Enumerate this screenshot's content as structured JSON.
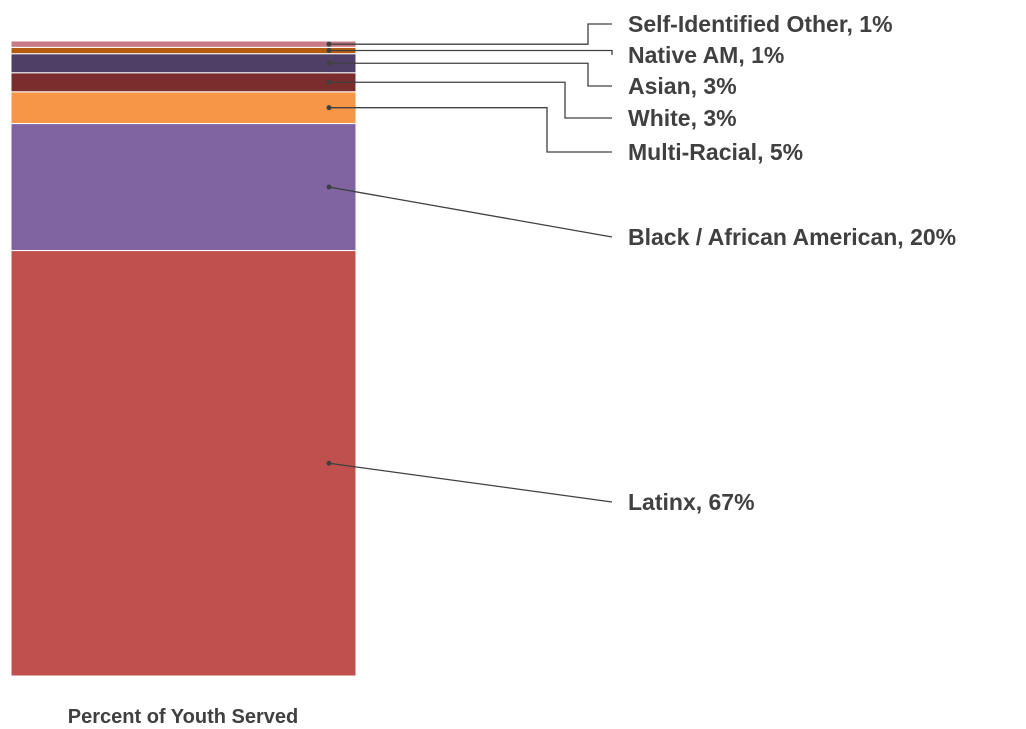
{
  "chart_data": {
    "type": "bar",
    "stacked": true,
    "xlabel": "Percent of Youth Served",
    "series": [
      {
        "name": "Latinx",
        "value": 67,
        "label": "Latinx, 67%",
        "color": "#C0504D"
      },
      {
        "name": "Black / African American",
        "value": 20,
        "label": "Black / African American, 20%",
        "color": "#8064A2"
      },
      {
        "name": "Multi-Racial",
        "value": 5,
        "label": "Multi-Racial, 5%",
        "color": "#F79646"
      },
      {
        "name": "White",
        "value": 3,
        "label": "White, 3%",
        "color": "#7B2C2C"
      },
      {
        "name": "Asian",
        "value": 3,
        "label": "Asian, 3%",
        "color": "#4F3F66"
      },
      {
        "name": "Native AM",
        "value": 1,
        "label": "Native AM, 1%",
        "color": "#B35C10"
      },
      {
        "name": "Self-Identified Other",
        "value": 1,
        "label": "Self-Identified Other, 1%",
        "color": "#C77A86"
      }
    ],
    "total": 100
  }
}
